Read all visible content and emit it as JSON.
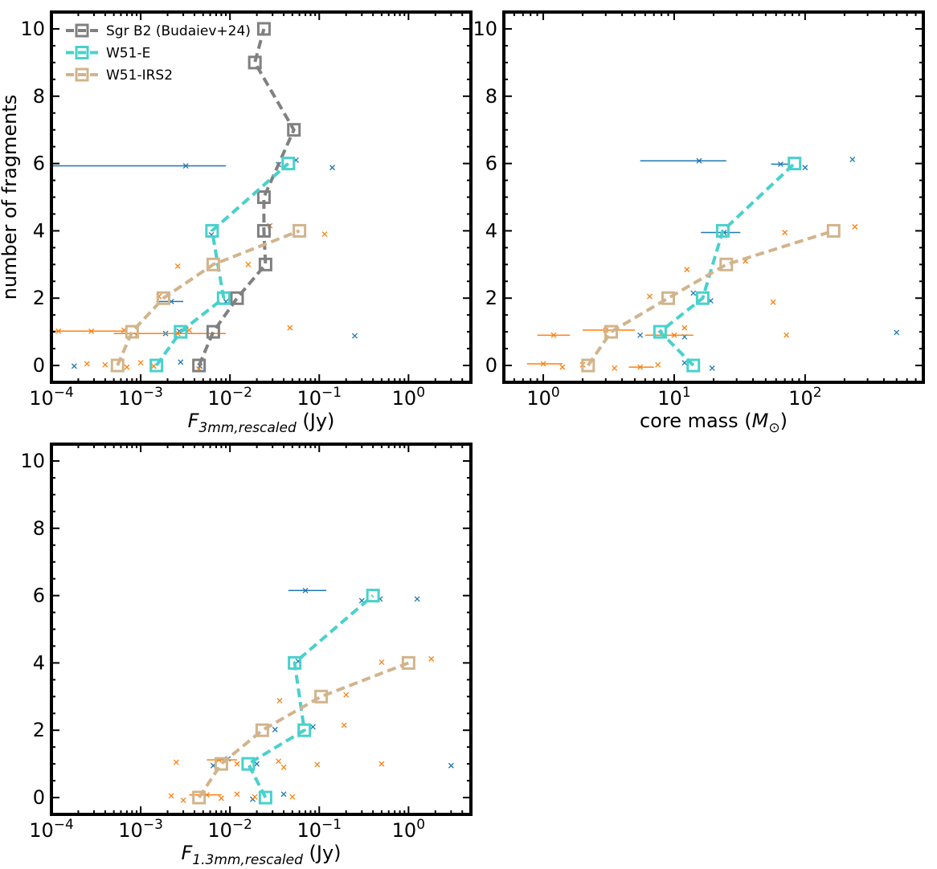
{
  "chart_data": [
    {
      "panel": "top-left",
      "type": "scatter",
      "x_scale": "log",
      "xlim": [
        0.0001,
        5
      ],
      "ylim": [
        -0.5,
        10.5
      ],
      "xlabel": "F_{3mm,rescaled} (Jy)",
      "xlabel_parts": {
        "symbol": "F",
        "subscript": "3mm,rescaled",
        "unit": " (Jy)"
      },
      "ylabel": "number of fragments",
      "x_ticks": [
        0.0001,
        0.001,
        0.01,
        0.1,
        1
      ],
      "x_tick_labels": [
        [
          "10",
          "−4"
        ],
        [
          "10",
          "−3"
        ],
        [
          "10",
          "−2"
        ],
        [
          "10",
          "−1"
        ],
        [
          "10",
          "0"
        ]
      ],
      "y_ticks": [
        0,
        2,
        4,
        6,
        8,
        10
      ],
      "legend": {
        "placement": "top-left",
        "entries": [
          {
            "label": "Sgr B2 (Budaiev+24)",
            "color": "#808080"
          },
          {
            "label": "W51-E",
            "color": "#48d1cc"
          },
          {
            "label": "W51-IRS2",
            "color": "#d2b48c"
          }
        ]
      },
      "lines": [
        {
          "name": "Sgr B2 (Budaiev+24)",
          "color": "#808080",
          "x": [
            0.0045,
            0.0065,
            0.012,
            0.025,
            0.024,
            0.024,
            0.052,
            0.019,
            0.024
          ],
          "y": [
            0,
            1,
            2,
            3,
            4,
            5,
            7,
            9,
            10
          ]
        },
        {
          "name": "W51-E",
          "color": "#48d1cc",
          "x": [
            0.0015,
            0.0028,
            0.0085,
            0.0063,
            0.045
          ],
          "y": [
            0,
            1,
            2,
            4,
            6
          ]
        },
        {
          "name": "W51-IRS2",
          "color": "#d2b48c",
          "x": [
            0.00055,
            0.0008,
            0.0018,
            0.0065,
            0.06
          ],
          "y": [
            0,
            1,
            2,
            3,
            4
          ]
        }
      ],
      "points": [
        {
          "color": "#1f77b4",
          "x": 0.0032,
          "y": 5.93,
          "xerr": [
            0.0001,
            0.009
          ]
        },
        {
          "color": "#1f77b4",
          "x": 0.035,
          "y": 5.97
        },
        {
          "color": "#1f77b4",
          "x": 0.055,
          "y": 6.1
        },
        {
          "color": "#1f77b4",
          "x": 0.14,
          "y": 5.88
        },
        {
          "color": "#1f77b4",
          "x": 0.0062,
          "y": 3.88
        },
        {
          "color": "#1f77b4",
          "x": 0.009,
          "y": 1.9
        },
        {
          "color": "#1f77b4",
          "x": 0.0022,
          "y": 1.9,
          "xerr": [
            0.0015,
            0.003
          ]
        },
        {
          "color": "#1f77b4",
          "x": 0.0032,
          "y": 1.08
        },
        {
          "color": "#1f77b4",
          "x": 0.0027,
          "y": 1.02
        },
        {
          "color": "#1f77b4",
          "x": 0.0019,
          "y": 0.95
        },
        {
          "color": "#1f77b4",
          "x": 0.25,
          "y": 0.88
        },
        {
          "color": "#1f77b4",
          "x": 0.00018,
          "y": -0.02
        },
        {
          "color": "#1f77b4",
          "x": 0.0028,
          "y": 0.1
        },
        {
          "color": "#1f77b4",
          "x": 0.0046,
          "y": -0.02
        },
        {
          "color": "#ff7f0e",
          "x": 0.0026,
          "y": 2.95
        },
        {
          "color": "#ff7f0e",
          "x": 0.016,
          "y": 3.0
        },
        {
          "color": "#ff7f0e",
          "x": 0.028,
          "y": 4.15
        },
        {
          "color": "#ff7f0e",
          "x": 0.115,
          "y": 3.9
        },
        {
          "color": "#ff7f0e",
          "x": 0.0016,
          "y": 2.05
        },
        {
          "color": "#ff7f0e",
          "x": 0.047,
          "y": 1.12
        },
        {
          "color": "#ff7f0e",
          "x": 0.00012,
          "y": 1.02,
          "xerr": [
            0.0001,
            0.0007
          ]
        },
        {
          "color": "#ff7f0e",
          "x": 0.00028,
          "y": 1.02
        },
        {
          "color": "#ff7f0e",
          "x": 0.00065,
          "y": 1.05
        },
        {
          "color": "#ff7f0e",
          "x": 0.0009,
          "y": 0.9
        },
        {
          "color": "#ff7f0e",
          "x": 0.0026,
          "y": 0.95,
          "xerr": [
            0.0005,
            0.009
          ]
        },
        {
          "color": "#ff7f0e",
          "x": 0.0035,
          "y": 1.05
        },
        {
          "color": "#ff7f0e",
          "x": 0.00025,
          "y": 0.05
        },
        {
          "color": "#ff7f0e",
          "x": 0.0004,
          "y": 0.02
        },
        {
          "color": "#ff7f0e",
          "x": 0.0007,
          "y": -0.05
        },
        {
          "color": "#ff7f0e",
          "x": 0.001,
          "y": 0.08
        },
        {
          "color": "#ff7f0e",
          "x": 0.0014,
          "y": -0.02
        },
        {
          "color": "#ff7f0e",
          "x": 0.0045,
          "y": -0.1
        }
      ]
    },
    {
      "panel": "top-right",
      "type": "scatter",
      "x_scale": "log",
      "xlim": [
        0.5,
        800
      ],
      "ylim": [
        -0.5,
        10.5
      ],
      "xlabel": "core mass (M⊙)",
      "xlabel_parts": {
        "text": "core mass (",
        "symbol": "M",
        "subscript": "⊙",
        "unit": ")"
      },
      "x_ticks": [
        1,
        10,
        100
      ],
      "x_tick_labels": [
        [
          "10",
          "0"
        ],
        [
          "10",
          "1"
        ],
        [
          "10",
          "2"
        ]
      ],
      "y_ticks": [
        0,
        2,
        4,
        6,
        8,
        10
      ],
      "lines": [
        {
          "name": "W51-E",
          "color": "#48d1cc",
          "x": [
            14,
            7.8,
            16.5,
            23.5,
            83
          ],
          "y": [
            0,
            1,
            2,
            4,
            6
          ]
        },
        {
          "name": "W51-IRS2",
          "color": "#d2b48c",
          "x": [
            2.2,
            3.3,
            9,
            25,
            165
          ],
          "y": [
            0,
            1,
            2,
            3,
            4
          ]
        }
      ],
      "points": [
        {
          "color": "#1f77b4",
          "x": 15.5,
          "y": 6.08,
          "xerr": [
            5.5,
            25
          ]
        },
        {
          "color": "#1f77b4",
          "x": 65,
          "y": 5.98,
          "xerr": [
            55,
            75
          ]
        },
        {
          "color": "#1f77b4",
          "x": 100,
          "y": 5.88
        },
        {
          "color": "#1f77b4",
          "x": 230,
          "y": 6.12
        },
        {
          "color": "#1f77b4",
          "x": 24,
          "y": 3.95,
          "xerr": [
            16,
            32
          ]
        },
        {
          "color": "#1f77b4",
          "x": 14,
          "y": 2.15
        },
        {
          "color": "#1f77b4",
          "x": 19,
          "y": 1.92
        },
        {
          "color": "#1f77b4",
          "x": 5.5,
          "y": 0.9
        },
        {
          "color": "#1f77b4",
          "x": 12,
          "y": 0.85
        },
        {
          "color": "#1f77b4",
          "x": 500,
          "y": 0.98
        },
        {
          "color": "#1f77b4",
          "x": 19.5,
          "y": -0.08
        },
        {
          "color": "#1f77b4",
          "x": 12,
          "y": 0.08
        },
        {
          "color": "#ff7f0e",
          "x": 70,
          "y": 3.95
        },
        {
          "color": "#ff7f0e",
          "x": 240,
          "y": 4.12
        },
        {
          "color": "#ff7f0e",
          "x": 35,
          "y": 3.1
        },
        {
          "color": "#ff7f0e",
          "x": 12.5,
          "y": 2.85
        },
        {
          "color": "#ff7f0e",
          "x": 6.5,
          "y": 2.05
        },
        {
          "color": "#ff7f0e",
          "x": 57,
          "y": 1.88
        },
        {
          "color": "#ff7f0e",
          "x": 72,
          "y": 0.9
        },
        {
          "color": "#ff7f0e",
          "x": 12,
          "y": 1.12
        },
        {
          "color": "#ff7f0e",
          "x": 3,
          "y": 1.05,
          "xerr": [
            2,
            5
          ]
        },
        {
          "color": "#ff7f0e",
          "x": 1.2,
          "y": 0.9,
          "xerr": [
            0.9,
            1.6
          ]
        },
        {
          "color": "#ff7f0e",
          "x": 10,
          "y": 0.9,
          "xerr": [
            6,
            14
          ]
        },
        {
          "color": "#ff7f0e",
          "x": 1.0,
          "y": 0.05,
          "xerr": [
            0.75,
            1.4
          ]
        },
        {
          "color": "#ff7f0e",
          "x": 1.4,
          "y": -0.05
        },
        {
          "color": "#ff7f0e",
          "x": 2.0,
          "y": 0.02
        },
        {
          "color": "#ff7f0e",
          "x": 3.5,
          "y": -0.08
        },
        {
          "color": "#ff7f0e",
          "x": 5.5,
          "y": -0.05,
          "xerr": [
            4.5,
            7
          ]
        },
        {
          "color": "#ff7f0e",
          "x": 7.5,
          "y": 0.02
        }
      ]
    },
    {
      "panel": "bottom-left",
      "type": "scatter",
      "x_scale": "log",
      "xlim": [
        0.0001,
        5
      ],
      "ylim": [
        -0.5,
        10.5
      ],
      "xlabel": "F_{1.3mm,rescaled} (Jy)",
      "xlabel_parts": {
        "symbol": "F",
        "subscript": "1.3mm,rescaled",
        "unit": " (Jy)"
      },
      "x_ticks": [
        0.0001,
        0.001,
        0.01,
        0.1,
        1
      ],
      "x_tick_labels": [
        [
          "10",
          "−4"
        ],
        [
          "10",
          "−3"
        ],
        [
          "10",
          "−2"
        ],
        [
          "10",
          "−1"
        ],
        [
          "10",
          "0"
        ]
      ],
      "y_ticks": [
        0,
        2,
        4,
        6,
        8,
        10
      ],
      "lines": [
        {
          "name": "W51-E",
          "color": "#48d1cc",
          "x": [
            0.025,
            0.016,
            0.068,
            0.053,
            0.4
          ],
          "y": [
            0,
            1,
            2,
            4,
            6
          ]
        },
        {
          "name": "W51-IRS2",
          "color": "#d2b48c",
          "x": [
            0.0045,
            0.008,
            0.023,
            0.105,
            1.0
          ],
          "y": [
            0,
            1,
            2,
            3,
            4
          ]
        }
      ],
      "points": [
        {
          "color": "#1f77b4",
          "x": 0.07,
          "y": 6.15,
          "xerr": [
            0.045,
            0.12
          ]
        },
        {
          "color": "#1f77b4",
          "x": 0.3,
          "y": 5.85
        },
        {
          "color": "#1f77b4",
          "x": 0.48,
          "y": 5.9
        },
        {
          "color": "#1f77b4",
          "x": 1.25,
          "y": 5.9
        },
        {
          "color": "#1f77b4",
          "x": 0.058,
          "y": 4.05
        },
        {
          "color": "#1f77b4",
          "x": 0.085,
          "y": 2.1
        },
        {
          "color": "#1f77b4",
          "x": 0.032,
          "y": 2.02
        },
        {
          "color": "#1f77b4",
          "x": 0.0095,
          "y": 1.15
        },
        {
          "color": "#1f77b4",
          "x": 0.02,
          "y": 1.0
        },
        {
          "color": "#1f77b4",
          "x": 0.0065,
          "y": 0.95
        },
        {
          "color": "#1f77b4",
          "x": 3.0,
          "y": 0.95
        },
        {
          "color": "#1f77b4",
          "x": 0.04,
          "y": 0.1
        },
        {
          "color": "#1f77b4",
          "x": 0.018,
          "y": -0.05
        },
        {
          "color": "#ff7f0e",
          "x": 0.5,
          "y": 4.02
        },
        {
          "color": "#ff7f0e",
          "x": 1.8,
          "y": 4.12
        },
        {
          "color": "#ff7f0e",
          "x": 0.036,
          "y": 2.88
        },
        {
          "color": "#ff7f0e",
          "x": 0.2,
          "y": 3.05
        },
        {
          "color": "#ff7f0e",
          "x": 0.19,
          "y": 2.15
        },
        {
          "color": "#ff7f0e",
          "x": 0.0025,
          "y": 1.05
        },
        {
          "color": "#ff7f0e",
          "x": 0.0075,
          "y": 1.12,
          "xerr": [
            0.0055,
            0.012
          ]
        },
        {
          "color": "#ff7f0e",
          "x": 0.012,
          "y": 1.0
        },
        {
          "color": "#ff7f0e",
          "x": 0.035,
          "y": 1.08
        },
        {
          "color": "#ff7f0e",
          "x": 0.04,
          "y": 0.9
        },
        {
          "color": "#ff7f0e",
          "x": 0.095,
          "y": 0.98
        },
        {
          "color": "#ff7f0e",
          "x": 0.5,
          "y": 1.0
        },
        {
          "color": "#ff7f0e",
          "x": 0.0022,
          "y": 0.05
        },
        {
          "color": "#ff7f0e",
          "x": 0.003,
          "y": -0.08
        },
        {
          "color": "#ff7f0e",
          "x": 0.0055,
          "y": 0.08,
          "xerr": [
            0.0035,
            0.008
          ]
        },
        {
          "color": "#ff7f0e",
          "x": 0.008,
          "y": -0.02
        },
        {
          "color": "#ff7f0e",
          "x": 0.012,
          "y": 0.1
        },
        {
          "color": "#ff7f0e",
          "x": 0.019,
          "y": 0.02
        },
        {
          "color": "#ff7f0e",
          "x": 0.05,
          "y": 0.02
        }
      ]
    }
  ]
}
